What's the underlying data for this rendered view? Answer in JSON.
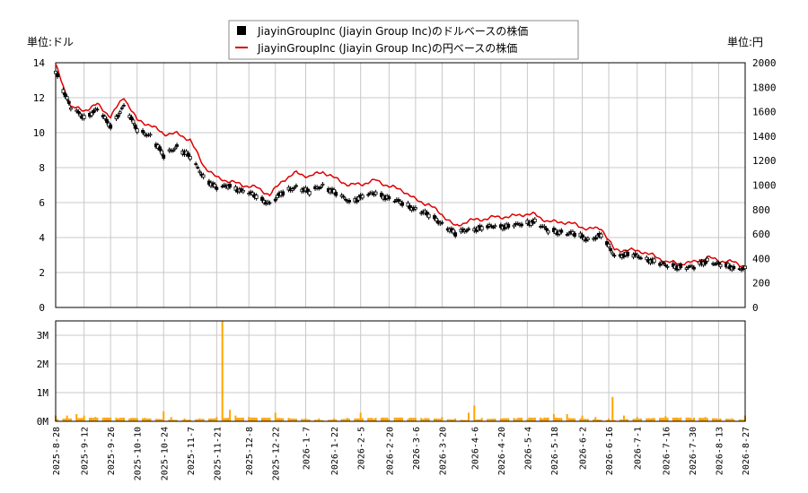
{
  "chart_data": [
    {
      "type": "candlestick+line",
      "legend": [
        "JiayinGroupInc (Jiayin Group Inc)のドルベースの株価",
        "JiayinGroupInc (Jiayin Group Inc)の円ベースの株価"
      ],
      "legend_placement": "top-center",
      "y_left_label": "単位:ドル",
      "y_right_label": "単位:円",
      "y_left_range": [
        0,
        14
      ],
      "y_left_ticks": [
        "0",
        "2",
        "4",
        "6",
        "8",
        "10",
        "12",
        "14"
      ],
      "y_right_range": [
        0,
        2000
      ],
      "y_right_ticks": [
        "0",
        "200",
        "400",
        "600",
        "800",
        "1000",
        "1200",
        "1400",
        "1600",
        "1800",
        "2000"
      ],
      "grid": true,
      "colors": {
        "usd": "#000000",
        "jpy": "#dd0000",
        "grid": "#c8c8c8"
      },
      "series": [
        {
          "name": "JiayinGroupInc (Jiayin Group Inc)のドルベースの株価",
          "x": [
            "2025-08-28",
            "2025-09-05",
            "2025-09-12",
            "2025-09-19",
            "2025-09-26",
            "2025-10-03",
            "2025-10-10",
            "2025-10-17",
            "2025-10-24",
            "2025-10-31",
            "2025-11-07",
            "2025-11-14",
            "2025-11-21",
            "2025-11-28",
            "2025-12-05",
            "2025-12-12",
            "2025-12-19",
            "2025-12-26",
            "2026-01-02",
            "2026-01-09",
            "2026-01-16",
            "2026-01-23",
            "2026-01-30",
            "2026-02-06",
            "2026-02-13",
            "2026-02-20",
            "2026-02-27",
            "2026-03-06",
            "2026-03-13",
            "2026-03-20",
            "2026-03-27",
            "2026-04-03",
            "2026-04-10",
            "2026-04-17",
            "2026-04-24",
            "2026-05-01",
            "2026-05-08",
            "2026-05-15",
            "2026-05-22",
            "2026-05-29",
            "2026-06-05",
            "2026-06-12",
            "2026-06-19",
            "2026-06-26",
            "2026-07-03",
            "2026-07-10",
            "2026-07-17",
            "2026-07-24",
            "2026-07-31",
            "2026-08-07",
            "2026-08-14",
            "2026-08-21",
            "2026-08-28"
          ],
          "values": [
            13.5,
            11.4,
            10.9,
            11.3,
            10.4,
            11.5,
            10.2,
            9.8,
            8.7,
            9.2,
            8.6,
            7.5,
            6.8,
            7.0,
            6.6,
            6.4,
            5.9,
            6.6,
            6.9,
            6.6,
            7.0,
            6.5,
            6.1,
            6.3,
            6.6,
            6.2,
            6.0,
            5.6,
            5.3,
            4.8,
            4.2,
            4.5,
            4.5,
            4.7,
            4.6,
            4.8,
            4.9,
            4.4,
            4.3,
            4.2,
            3.9,
            4.1,
            3.0,
            3.0,
            2.9,
            2.6,
            2.4,
            2.3,
            2.3,
            2.7,
            2.4,
            2.3,
            2.2
          ]
        },
        {
          "name": "JiayinGroupInc (Jiayin Group Inc)の円ベースの株価",
          "x": [
            "2025-08-28",
            "2025-09-05",
            "2025-09-12",
            "2025-09-19",
            "2025-09-26",
            "2025-10-03",
            "2025-10-10",
            "2025-10-17",
            "2025-10-24",
            "2025-10-31",
            "2025-11-07",
            "2025-11-14",
            "2025-11-21",
            "2025-11-28",
            "2025-12-05",
            "2025-12-12",
            "2025-12-19",
            "2025-12-26",
            "2026-01-02",
            "2026-01-09",
            "2026-01-16",
            "2026-01-23",
            "2026-01-30",
            "2026-02-06",
            "2026-02-13",
            "2026-02-20",
            "2026-02-27",
            "2026-03-06",
            "2026-03-13",
            "2026-03-20",
            "2026-03-27",
            "2026-04-03",
            "2026-04-10",
            "2026-04-17",
            "2026-04-24",
            "2026-05-01",
            "2026-05-08",
            "2026-05-15",
            "2026-05-22",
            "2026-05-29",
            "2026-06-05",
            "2026-06-12",
            "2026-06-19",
            "2026-06-26",
            "2026-07-03",
            "2026-07-10",
            "2026-07-17",
            "2026-07-24",
            "2026-07-31",
            "2026-08-07",
            "2026-08-14",
            "2026-08-21",
            "2026-08-28"
          ],
          "values": [
            1980,
            1640,
            1610,
            1660,
            1560,
            1720,
            1530,
            1490,
            1420,
            1420,
            1370,
            1160,
            1060,
            1030,
            1000,
            980,
            920,
            1040,
            1100,
            1070,
            1110,
            1050,
            1000,
            1010,
            1040,
            990,
            960,
            880,
            840,
            760,
            660,
            710,
            720,
            740,
            740,
            760,
            760,
            700,
            700,
            680,
            640,
            650,
            470,
            470,
            460,
            420,
            370,
            360,
            370,
            410,
            380,
            370,
            330
          ]
        }
      ]
    },
    {
      "type": "bar",
      "title": "",
      "y_range": [
        0,
        3500000
      ],
      "y_ticks": [
        "0M",
        "1M",
        "2M",
        "3M"
      ],
      "grid": true,
      "colors": {
        "bar": "#ffa500"
      },
      "x_ticks": [
        "2025-8-28",
        "2025-9-12",
        "2025-9-26",
        "2025-10-10",
        "2025-10-24",
        "2025-11-7",
        "2025-11-21",
        "2025-12-8",
        "2025-12-22",
        "2026-1-7",
        "2026-1-22",
        "2026-2-5",
        "2026-2-20",
        "2026-3-6",
        "2026-3-20",
        "2026-4-6",
        "2026-4-20",
        "2026-5-4",
        "2026-5-18",
        "2026-6-2",
        "2026-6-16",
        "2026-7-1",
        "2026-7-16",
        "2026-7-30",
        "2026-8-13",
        "2026-8-27"
      ],
      "x": [
        "2025-08-28",
        "2025-09-03",
        "2025-09-08",
        "2025-09-12",
        "2025-09-18",
        "2025-09-24",
        "2025-09-30",
        "2025-10-06",
        "2025-10-14",
        "2025-10-24",
        "2025-10-28",
        "2025-11-04",
        "2025-11-12",
        "2025-11-21",
        "2025-11-24",
        "2025-11-28",
        "2025-12-01",
        "2025-12-08",
        "2025-12-15",
        "2025-12-22",
        "2025-12-29",
        "2026-01-07",
        "2026-01-14",
        "2026-01-22",
        "2026-01-29",
        "2026-02-05",
        "2026-02-12",
        "2026-02-20",
        "2026-03-02",
        "2026-03-10",
        "2026-03-20",
        "2026-03-27",
        "2026-04-03",
        "2026-04-06",
        "2026-04-10",
        "2026-04-20",
        "2026-04-28",
        "2026-05-04",
        "2026-05-12",
        "2026-05-18",
        "2026-05-25",
        "2026-06-02",
        "2026-06-09",
        "2026-06-16",
        "2026-06-18",
        "2026-06-24",
        "2026-07-01",
        "2026-07-08",
        "2026-07-16",
        "2026-07-23",
        "2026-07-30",
        "2026-08-06",
        "2026-08-13",
        "2026-08-20",
        "2026-08-27"
      ],
      "values": [
        200000,
        200000,
        250000,
        200000,
        150000,
        130000,
        100000,
        100000,
        120000,
        350000,
        150000,
        100000,
        100000,
        150000,
        3500000,
        400000,
        200000,
        150000,
        120000,
        300000,
        120000,
        100000,
        100000,
        100000,
        120000,
        300000,
        80000,
        80000,
        80000,
        80000,
        150000,
        100000,
        300000,
        550000,
        120000,
        100000,
        80000,
        80000,
        100000,
        250000,
        250000,
        200000,
        150000,
        100000,
        850000,
        200000,
        150000,
        100000,
        180000,
        120000,
        80000,
        150000,
        80000,
        100000,
        200000
      ]
    }
  ]
}
